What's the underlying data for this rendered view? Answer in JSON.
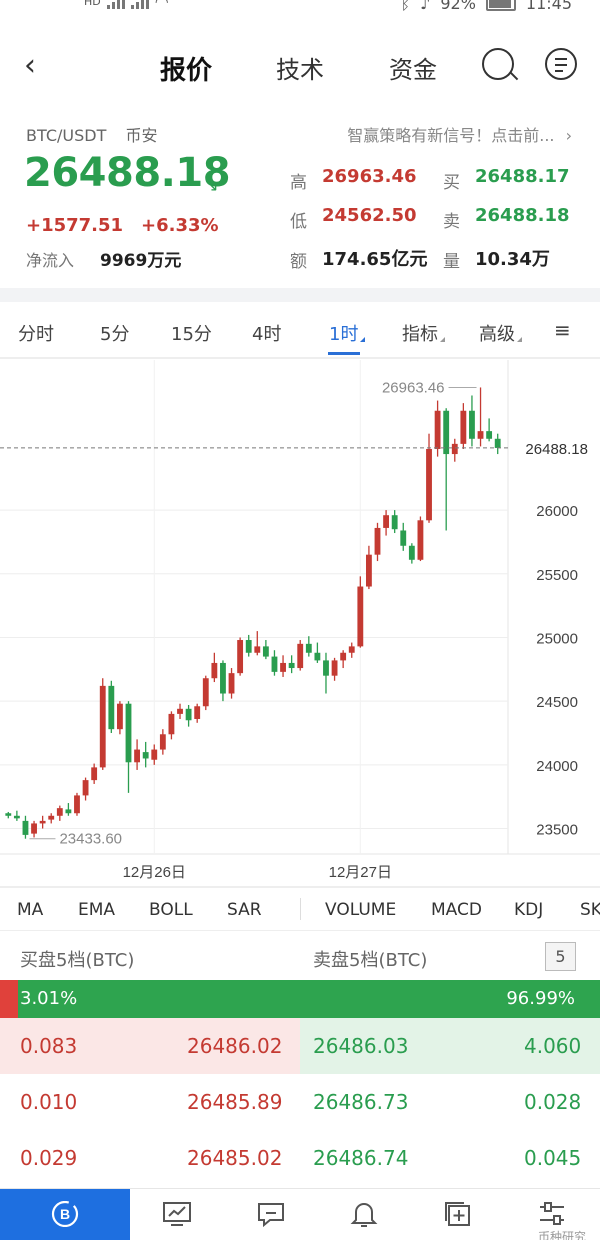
{
  "status_bar": {
    "battery": "92%",
    "time": "11:45",
    "left_badge": "HD"
  },
  "header": {
    "back_icon": "chevron-left-icon",
    "tabs": [
      "报价",
      "技术",
      "资金"
    ],
    "active_tab": "报价"
  },
  "quote": {
    "pair": "BTC/USDT",
    "exchange": "币安",
    "signal_text": "智赢策略有新信号！点击前...",
    "price": "26488.18",
    "change": "+1577.51",
    "change_pct": "+6.33%",
    "net_inflow_label": "净流入",
    "net_inflow_value": "9969万元",
    "stats": {
      "high_label": "高",
      "high": "26963.46",
      "buy_label": "买",
      "buy": "26488.17",
      "low_label": "低",
      "low": "24562.50",
      "sell_label": "卖",
      "sell": "26488.18",
      "amount_label": "额",
      "amount": "174.65亿元",
      "volume_label": "量",
      "volume": "10.34万"
    }
  },
  "interval_tabs": [
    "分时",
    "5分",
    "15分",
    "4时",
    "1时",
    "指标",
    "高级"
  ],
  "active_interval": "1时",
  "chart_data": {
    "type": "candlestick",
    "interval": "1h",
    "y_ticks": [
      23500,
      24000,
      24500,
      25000,
      25500,
      26000
    ],
    "ylim": [
      23300,
      27100
    ],
    "x_labels": [
      {
        "index": 17,
        "label": "12月26日"
      },
      {
        "index": 41,
        "label": "12月27日"
      }
    ],
    "last_price_label": "26488.18",
    "last_price": 26488.18,
    "max_label": "26963.46",
    "min_label": "23433.60",
    "grid": true,
    "candles": [
      [
        23620,
        23630,
        23580,
        23600
      ],
      [
        23600,
        23640,
        23560,
        23580
      ],
      [
        23560,
        23600,
        23420,
        23450
      ],
      [
        23460,
        23560,
        23430,
        23540
      ],
      [
        23540,
        23600,
        23500,
        23560
      ],
      [
        23570,
        23620,
        23540,
        23600
      ],
      [
        23600,
        23680,
        23560,
        23660
      ],
      [
        23650,
        23700,
        23600,
        23620
      ],
      [
        23620,
        23780,
        23600,
        23760
      ],
      [
        23760,
        23900,
        23720,
        23880
      ],
      [
        23880,
        24010,
        23850,
        23980
      ],
      [
        23980,
        24680,
        23960,
        24620
      ],
      [
        24620,
        24660,
        24250,
        24280
      ],
      [
        24280,
        24500,
        24240,
        24480
      ],
      [
        24480,
        24500,
        23780,
        24020
      ],
      [
        24020,
        24200,
        23960,
        24120
      ],
      [
        24100,
        24180,
        23980,
        24050
      ],
      [
        24040,
        24160,
        24000,
        24120
      ],
      [
        24120,
        24280,
        24080,
        24240
      ],
      [
        24240,
        24420,
        24200,
        24400
      ],
      [
        24400,
        24480,
        24360,
        24440
      ],
      [
        24440,
        24470,
        24300,
        24350
      ],
      [
        24360,
        24480,
        24330,
        24460
      ],
      [
        24460,
        24700,
        24430,
        24680
      ],
      [
        24680,
        24880,
        24650,
        24800
      ],
      [
        24800,
        24820,
        24500,
        24560
      ],
      [
        24560,
        24760,
        24520,
        24720
      ],
      [
        24720,
        25000,
        24700,
        24980
      ],
      [
        24980,
        25020,
        24850,
        24880
      ],
      [
        24880,
        25050,
        24860,
        24930
      ],
      [
        24930,
        24980,
        24830,
        24850
      ],
      [
        24850,
        24900,
        24700,
        24730
      ],
      [
        24730,
        24860,
        24690,
        24800
      ],
      [
        24800,
        24860,
        24720,
        24760
      ],
      [
        24760,
        24980,
        24740,
        24950
      ],
      [
        24950,
        25010,
        24850,
        24880
      ],
      [
        24880,
        24960,
        24800,
        24820
      ],
      [
        24820,
        24880,
        24560,
        24700
      ],
      [
        24700,
        24840,
        24660,
        24820
      ],
      [
        24820,
        24900,
        24760,
        24880
      ],
      [
        24880,
        24960,
        24840,
        24930
      ],
      [
        24930,
        25480,
        24920,
        25400
      ],
      [
        25400,
        25720,
        25380,
        25650
      ],
      [
        25650,
        25900,
        25600,
        25860
      ],
      [
        25860,
        26000,
        25800,
        25960
      ],
      [
        25960,
        26000,
        25820,
        25850
      ],
      [
        25840,
        25900,
        25680,
        25720
      ],
      [
        25720,
        25740,
        25580,
        25610
      ],
      [
        25610,
        25950,
        25600,
        25920
      ],
      [
        25920,
        26600,
        25900,
        26480
      ],
      [
        26480,
        26860,
        26420,
        26780
      ],
      [
        26780,
        26800,
        25840,
        26440
      ],
      [
        26440,
        26560,
        26380,
        26520
      ],
      [
        26520,
        26840,
        26480,
        26780
      ],
      [
        26780,
        26900,
        26500,
        26560
      ],
      [
        26560,
        26963,
        26500,
        26620
      ],
      [
        26620,
        26720,
        26540,
        26560
      ],
      [
        26560,
        26600,
        26440,
        26488
      ]
    ]
  },
  "indicators": [
    "MA",
    "EMA",
    "BOLL",
    "SAR",
    "VOLUME",
    "MACD",
    "KDJ",
    "SK"
  ],
  "orderbook": {
    "bid_title": "买盘5档(BTC)",
    "ask_title": "卖盘5档(BTC)",
    "depth": "5",
    "bid_ratio": "3.01%",
    "ask_ratio": "96.99%",
    "bid_ratio_value": 3.01,
    "rows": [
      {
        "bid_qty": "0.083",
        "bid_price": "26486.02",
        "ask_price": "26486.03",
        "ask_qty": "4.060",
        "bid_fill": 1.0,
        "ask_fill": 1.0
      },
      {
        "bid_qty": "0.010",
        "bid_price": "26485.89",
        "ask_price": "26486.73",
        "ask_qty": "0.028",
        "bid_fill": 0.0,
        "ask_fill": 0.0
      },
      {
        "bid_qty": "0.029",
        "bid_price": "26485.02",
        "ask_price": "26486.74",
        "ask_qty": "0.045",
        "bid_fill": 0.0,
        "ask_fill": 0.0
      }
    ]
  },
  "bottom_nav": [
    "bitcoin-icon",
    "chart-monitor-icon",
    "comment-icon",
    "bell-icon",
    "add-square-icon",
    "settings-sliders-icon"
  ],
  "watermark": "币种研究",
  "colors": {
    "up": "#2a9d4f",
    "down": "#c43a32",
    "accent": "#1e6fe0"
  }
}
